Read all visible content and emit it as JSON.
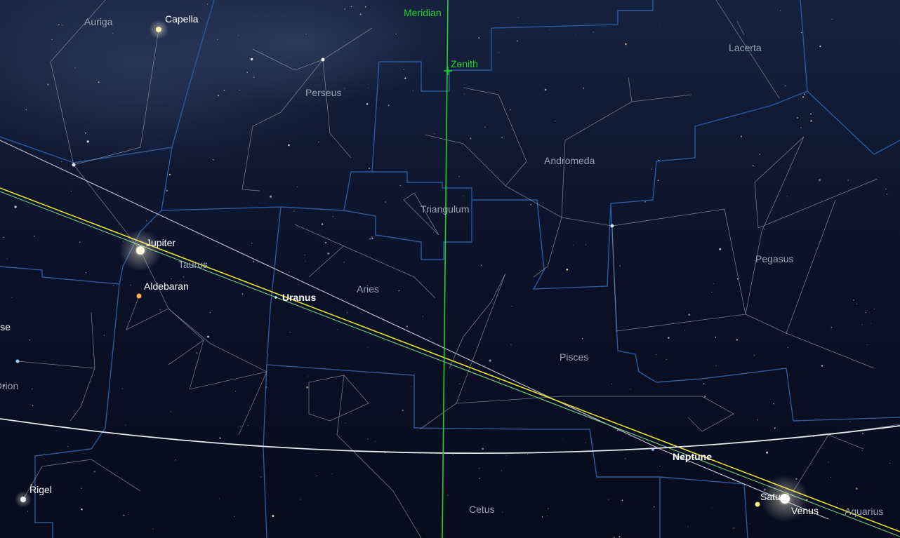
{
  "guides": {
    "meridian": "Meridian",
    "zenith": "Zenith"
  },
  "constellations": [
    "Auriga",
    "Perseus",
    "Lacerta",
    "Andromeda",
    "Triangulum",
    "Pegasus",
    "Taurus",
    "Aries",
    "Pisces",
    "Orion",
    "Cetus",
    "Aquarius"
  ],
  "stars": [
    "Capella",
    "Aldebaran",
    "Betelgeuse",
    "Rigel"
  ],
  "planets": [
    "Jupiter",
    "Uranus",
    "Neptune",
    "Saturn",
    "Venus"
  ]
}
